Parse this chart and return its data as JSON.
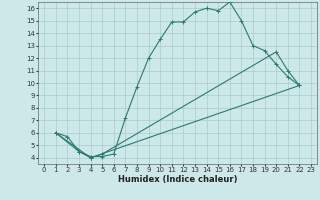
{
  "title": "",
  "xlabel": "Humidex (Indice chaleur)",
  "xlim": [
    -0.5,
    23.5
  ],
  "ylim": [
    3.5,
    16.5
  ],
  "xticks": [
    0,
    1,
    2,
    3,
    4,
    5,
    6,
    7,
    8,
    9,
    10,
    11,
    12,
    13,
    14,
    15,
    16,
    17,
    18,
    19,
    20,
    21,
    22,
    23
  ],
  "yticks": [
    4,
    5,
    6,
    7,
    8,
    9,
    10,
    11,
    12,
    13,
    14,
    15,
    16
  ],
  "bg_color": "#cde8e8",
  "grid_color": "#aacccc",
  "line_color": "#2d7a6e",
  "line1_x": [
    1,
    2,
    3,
    4,
    5,
    6,
    7,
    8,
    9,
    10,
    11,
    12,
    13,
    14,
    15,
    16,
    17,
    18,
    19,
    20,
    21,
    22
  ],
  "line1_y": [
    6,
    5.7,
    4.5,
    4.1,
    4.1,
    4.3,
    7.2,
    9.7,
    12.0,
    13.5,
    14.9,
    14.9,
    15.7,
    16.0,
    15.8,
    16.5,
    15.0,
    13.0,
    12.6,
    11.5,
    10.5,
    9.8
  ],
  "line2_x": [
    1,
    3,
    4,
    5,
    20,
    21,
    22
  ],
  "line2_y": [
    6,
    4.5,
    4.0,
    4.3,
    12.5,
    11.0,
    9.8
  ],
  "line3_x": [
    1,
    4,
    22
  ],
  "line3_y": [
    6,
    4.0,
    9.8
  ],
  "fontsize_label": 6,
  "fontsize_tick": 5,
  "marker": "+"
}
